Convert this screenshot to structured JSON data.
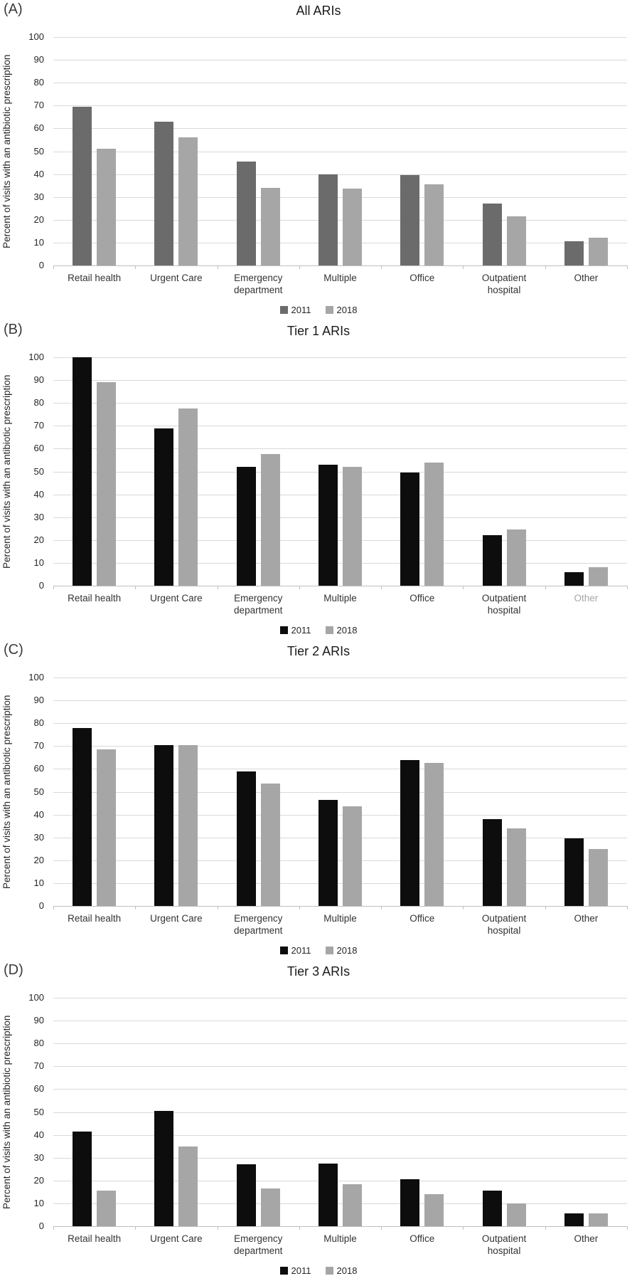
{
  "figure": {
    "ylabel": "Percent of visits with an antibiotic prescription",
    "legend": [
      "2011",
      "2018"
    ],
    "y_ticks": [
      0,
      10,
      20,
      30,
      40,
      50,
      60,
      70,
      80,
      90,
      100
    ]
  },
  "colors": {
    "grid": "#d9d9d9",
    "axis": "#bfbfbf",
    "text": "#262626",
    "muted_label": "#a6a6a6",
    "bar_2011_panelA": "#6b6b6b",
    "bar_2011_black": "#0d0d0d",
    "bar_2018_gray": "#a6a6a6"
  },
  "chart_data": [
    {
      "type": "bar",
      "panel_letter": "(A)",
      "title": "All ARIs",
      "ylabel": "Percent of visits with an antibiotic prescription",
      "ylim": [
        0,
        100
      ],
      "ytick_step": 10,
      "grid": true,
      "legend_position": "bottom",
      "categories": [
        "Retail health",
        "Urgent Care",
        "Emergency\ndepartment",
        "Multiple",
        "Office",
        "Outpatient\nhospital",
        "Other"
      ],
      "series": [
        {
          "name": "2011",
          "color": "#6b6b6b",
          "values": [
            69.5,
            63,
            45.5,
            40,
            39.5,
            27,
            10.5
          ]
        },
        {
          "name": "2018",
          "color": "#a6a6a6",
          "values": [
            51,
            56,
            34,
            33.5,
            35.5,
            21.5,
            12
          ]
        }
      ]
    },
    {
      "type": "bar",
      "panel_letter": "(B)",
      "title": "Tier 1 ARIs",
      "ylabel": "Percent of visits with an antibiotic prescription",
      "ylim": [
        0,
        100
      ],
      "ytick_step": 10,
      "grid": true,
      "legend_position": "bottom",
      "muted_category": "Other",
      "categories": [
        "Retail health",
        "Urgent Care",
        "Emergency\ndepartment",
        "Multiple",
        "Office",
        "Outpatient\nhospital",
        "Other"
      ],
      "series": [
        {
          "name": "2011",
          "color": "#0d0d0d",
          "values": [
            100,
            69,
            52,
            53,
            49.5,
            22,
            6
          ]
        },
        {
          "name": "2018",
          "color": "#a6a6a6",
          "values": [
            89,
            77.5,
            57.5,
            52,
            54,
            24.5,
            8
          ]
        }
      ]
    },
    {
      "type": "bar",
      "panel_letter": "(C)",
      "title": "Tier 2 ARIs",
      "ylabel": "Percent of visits with an antibiotic prescription",
      "ylim": [
        0,
        100
      ],
      "ytick_step": 10,
      "grid": true,
      "legend_position": "bottom",
      "categories": [
        "Retail health",
        "Urgent Care",
        "Emergency\ndepartment",
        "Multiple",
        "Office",
        "Outpatient\nhospital",
        "Other"
      ],
      "series": [
        {
          "name": "2011",
          "color": "#0d0d0d",
          "values": [
            78,
            70.5,
            59,
            46.5,
            64,
            38,
            29.5
          ]
        },
        {
          "name": "2018",
          "color": "#a6a6a6",
          "values": [
            68.5,
            70.5,
            53.5,
            43.5,
            62.5,
            34,
            25
          ]
        }
      ]
    },
    {
      "type": "bar",
      "panel_letter": "(D)",
      "title": "Tier 3 ARIs",
      "ylabel": "Percent of visits with an antibiotic prescription",
      "ylim": [
        0,
        100
      ],
      "ytick_step": 10,
      "grid": true,
      "legend_position": "bottom",
      "categories": [
        "Retail health",
        "Urgent Care",
        "Emergency\ndepartment",
        "Multiple",
        "Office",
        "Outpatient\nhospital",
        "Other"
      ],
      "series": [
        {
          "name": "2011",
          "color": "#0d0d0d",
          "values": [
            41.5,
            50.5,
            27,
            27.5,
            20.5,
            15.5,
            5.5
          ]
        },
        {
          "name": "2018",
          "color": "#a6a6a6",
          "values": [
            15.5,
            35,
            16.5,
            18.5,
            14,
            10,
            5.5
          ]
        }
      ]
    }
  ]
}
